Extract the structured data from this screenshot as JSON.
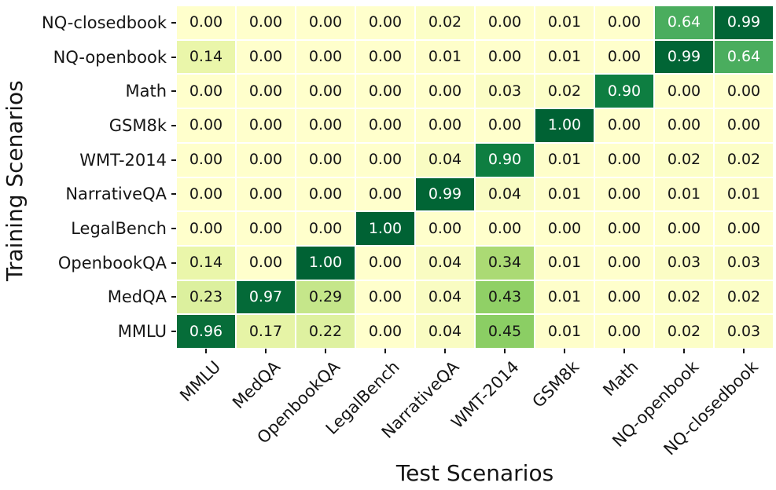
{
  "chart_data": {
    "type": "heatmap",
    "xlabel": "Test Scenarios",
    "ylabel": "Training Scenarios",
    "rows": [
      "NQ-closedbook",
      "NQ-openbook",
      "Math",
      "GSM8k",
      "WMT-2014",
      "NarrativeQA",
      "LegalBench",
      "OpenbookQA",
      "MedQA",
      "MMLU"
    ],
    "columns": [
      "MMLU",
      "MedQA",
      "OpenbookQA",
      "LegalBench",
      "NarrativeQA",
      "WMT-2014",
      "GSM8k",
      "Math",
      "NQ-openbook",
      "NQ-closedbook"
    ],
    "values": [
      [
        0.0,
        0.0,
        0.0,
        0.0,
        0.02,
        0.0,
        0.01,
        0.0,
        0.64,
        0.99
      ],
      [
        0.14,
        0.0,
        0.0,
        0.0,
        0.01,
        0.0,
        0.01,
        0.0,
        0.99,
        0.64
      ],
      [
        0.0,
        0.0,
        0.0,
        0.0,
        0.0,
        0.03,
        0.02,
        0.9,
        0.0,
        0.0
      ],
      [
        0.0,
        0.0,
        0.0,
        0.0,
        0.0,
        0.0,
        1.0,
        0.0,
        0.0,
        0.0
      ],
      [
        0.0,
        0.0,
        0.0,
        0.0,
        0.04,
        0.9,
        0.01,
        0.0,
        0.02,
        0.02
      ],
      [
        0.0,
        0.0,
        0.0,
        0.0,
        0.99,
        0.04,
        0.01,
        0.0,
        0.01,
        0.01
      ],
      [
        0.0,
        0.0,
        0.0,
        1.0,
        0.0,
        0.0,
        0.0,
        0.0,
        0.0,
        0.0
      ],
      [
        0.14,
        0.0,
        1.0,
        0.0,
        0.04,
        0.34,
        0.01,
        0.0,
        0.03,
        0.03
      ],
      [
        0.23,
        0.97,
        0.29,
        0.0,
        0.04,
        0.43,
        0.01,
        0.0,
        0.02,
        0.02
      ],
      [
        0.96,
        0.17,
        0.22,
        0.0,
        0.04,
        0.45,
        0.01,
        0.0,
        0.02,
        0.03
      ]
    ],
    "value_format_decimals": 2,
    "colormap": {
      "name": "YlGn",
      "stops": [
        [
          0.0,
          "#ffffcc"
        ],
        [
          0.15,
          "#e9f5a8"
        ],
        [
          0.25,
          "#d9ef9c"
        ],
        [
          0.35,
          "#a6d870"
        ],
        [
          0.45,
          "#8bce64"
        ],
        [
          0.55,
          "#62ba62"
        ],
        [
          0.65,
          "#47ab5e"
        ],
        [
          0.8,
          "#1d8c49"
        ],
        [
          0.9,
          "#0e7e41"
        ],
        [
          1.0,
          "#006234"
        ]
      ]
    },
    "white_text_threshold": 0.6,
    "grid_on": true,
    "gridline_color": "#ffffff",
    "dark_text_color": "#151515",
    "light_text_color": "#ffffff",
    "background_color": "#ffffff",
    "legend_position": "none"
  }
}
